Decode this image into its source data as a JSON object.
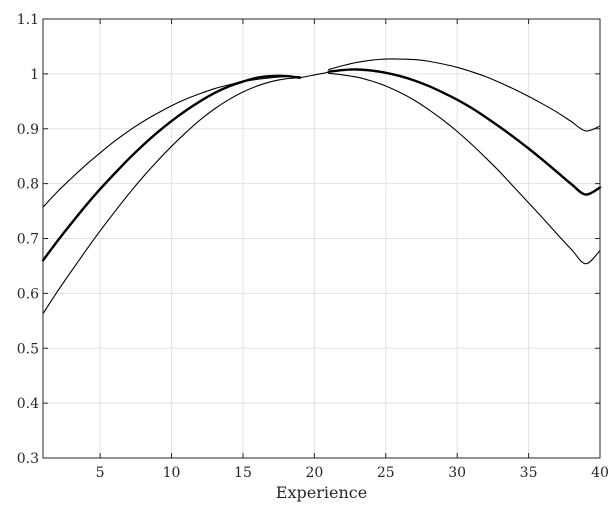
{
  "chart_data": {
    "type": "line",
    "title": "",
    "xlabel": "Experience",
    "ylabel": "",
    "xlim": [
      1,
      40
    ],
    "ylim": [
      0.3,
      1.1
    ],
    "xticks": [
      5,
      10,
      15,
      20,
      25,
      30,
      35,
      40
    ],
    "yticks": [
      0.3,
      0.4,
      0.5,
      0.6,
      0.7,
      0.8,
      0.9,
      1.0,
      1.1
    ],
    "xtick_labels": [
      "5",
      "10",
      "15",
      "20",
      "25",
      "30",
      "35",
      "40"
    ],
    "ytick_labels": [
      "0.3",
      "0.4",
      "0.5",
      "0.6",
      "0.7",
      "0.8",
      "0.9",
      "1",
      "1.1"
    ],
    "grid": true,
    "series": [
      {
        "color": "#000000",
        "style": "thin",
        "x": [
          1,
          2,
          3,
          4,
          5,
          6,
          7,
          8,
          9,
          10,
          11,
          12,
          13,
          14,
          15,
          16,
          17,
          18,
          19
        ],
        "y": [
          0.757,
          0.785,
          0.81,
          0.834,
          0.856,
          0.877,
          0.896,
          0.913,
          0.928,
          0.942,
          0.954,
          0.964,
          0.973,
          0.98,
          0.986,
          0.99,
          0.993,
          0.995,
          0.995
        ]
      },
      {
        "color": "#000000",
        "style": "thick",
        "x": [
          1,
          2,
          3,
          4,
          5,
          6,
          7,
          8,
          9,
          10,
          11,
          12,
          13,
          14,
          15,
          16,
          17,
          18,
          19
        ],
        "y": [
          0.66,
          0.695,
          0.728,
          0.76,
          0.79,
          0.818,
          0.845,
          0.87,
          0.893,
          0.914,
          0.933,
          0.95,
          0.965,
          0.977,
          0.986,
          0.993,
          0.996,
          0.996,
          0.993
        ]
      },
      {
        "color": "#000000",
        "style": "thin",
        "x": [
          1,
          2,
          3,
          4,
          5,
          6,
          7,
          8,
          9,
          10,
          11,
          12,
          13,
          14,
          15,
          16,
          17,
          18,
          19
        ],
        "y": [
          0.563,
          0.603,
          0.641,
          0.678,
          0.714,
          0.748,
          0.781,
          0.812,
          0.841,
          0.868,
          0.893,
          0.916,
          0.936,
          0.953,
          0.967,
          0.978,
          0.986,
          0.991,
          0.993
        ]
      },
      {
        "color": "#000000",
        "style": "thin",
        "x": [
          19,
          20,
          21
        ],
        "y": [
          0.993,
          0.998,
          1.003
        ]
      },
      {
        "color": "#000000",
        "style": "thin",
        "x": [
          21,
          22,
          23,
          24,
          25,
          26,
          27,
          28,
          29,
          30,
          31,
          32,
          33,
          34,
          35,
          36,
          37,
          38,
          39,
          40
        ],
        "y": [
          1.008,
          1.015,
          1.021,
          1.025,
          1.027,
          1.027,
          1.026,
          1.023,
          1.018,
          1.012,
          1.004,
          0.995,
          0.984,
          0.972,
          0.959,
          0.945,
          0.93,
          0.913,
          0.896,
          0.905
        ]
      },
      {
        "color": "#000000",
        "style": "thick",
        "x": [
          21,
          22,
          23,
          24,
          25,
          26,
          27,
          28,
          29,
          30,
          31,
          32,
          33,
          34,
          35,
          36,
          37,
          38,
          39,
          40
        ],
        "y": [
          1.004,
          1.007,
          1.008,
          1.006,
          1.002,
          0.996,
          0.988,
          0.978,
          0.966,
          0.953,
          0.938,
          0.921,
          0.903,
          0.884,
          0.864,
          0.843,
          0.821,
          0.799,
          0.78,
          0.793
        ]
      },
      {
        "color": "#000000",
        "style": "thin",
        "x": [
          21,
          22,
          23,
          24,
          25,
          26,
          27,
          28,
          29,
          30,
          31,
          32,
          33,
          34,
          35,
          36,
          37,
          38,
          39,
          40
        ],
        "y": [
          1.001,
          0.998,
          0.994,
          0.987,
          0.978,
          0.966,
          0.952,
          0.935,
          0.916,
          0.895,
          0.872,
          0.847,
          0.821,
          0.793,
          0.765,
          0.737,
          0.708,
          0.68,
          0.654,
          0.678
        ]
      }
    ]
  }
}
